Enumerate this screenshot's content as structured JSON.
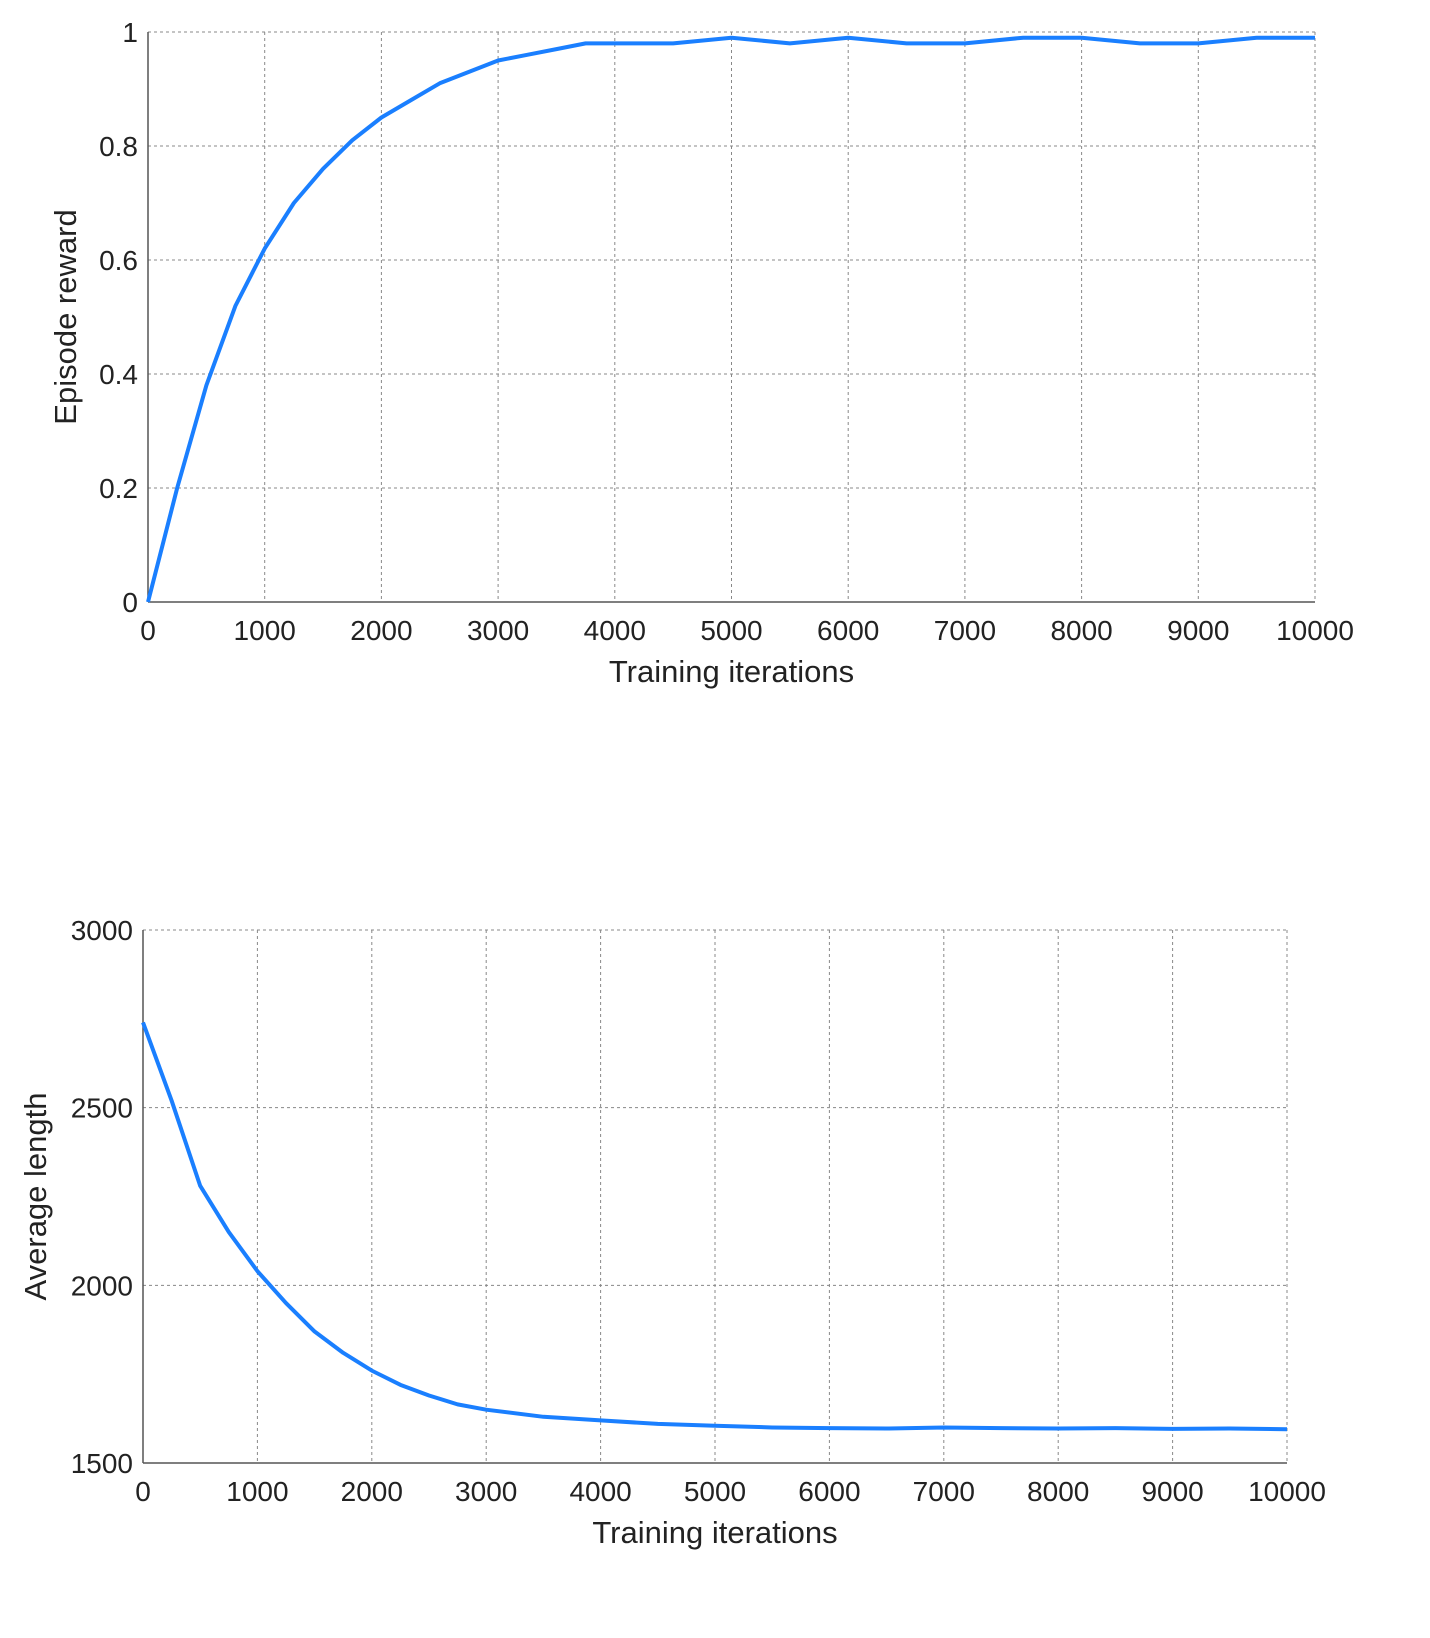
{
  "chart_data": [
    {
      "type": "line",
      "xlabel": "Training iterations",
      "ylabel": "Episode reward",
      "x": [
        0,
        250,
        500,
        750,
        1000,
        1250,
        1500,
        1750,
        2000,
        2250,
        2500,
        2750,
        3000,
        3250,
        3500,
        3750,
        4000,
        4500,
        5000,
        5500,
        6000,
        6500,
        7000,
        7500,
        8000,
        8500,
        9000,
        9500,
        10000
      ],
      "series": [
        {
          "name": "Episode reward",
          "color": "#1a7fff",
          "values": [
            0,
            0.2,
            0.38,
            0.52,
            0.62,
            0.7,
            0.76,
            0.81,
            0.85,
            0.88,
            0.91,
            0.93,
            0.95,
            0.96,
            0.97,
            0.98,
            0.98,
            0.98,
            0.99,
            0.98,
            0.99,
            0.98,
            0.98,
            0.99,
            0.99,
            0.98,
            0.98,
            0.99,
            0.99
          ]
        }
      ],
      "xlim": [
        0,
        10000
      ],
      "xticks": [
        0,
        1000,
        2000,
        3000,
        4000,
        5000,
        6000,
        7000,
        8000,
        9000,
        10000
      ],
      "ylim": [
        0,
        1
      ],
      "yticks": [
        0,
        0.2,
        0.4,
        0.6,
        0.8,
        1
      ],
      "grid": true
    },
    {
      "type": "line",
      "xlabel": "Training iterations",
      "ylabel": "Average length",
      "x": [
        0,
        250,
        500,
        750,
        1000,
        1250,
        1500,
        1750,
        2000,
        2250,
        2500,
        2750,
        3000,
        3500,
        4000,
        4500,
        5000,
        5500,
        6000,
        6500,
        7000,
        7500,
        8000,
        8500,
        9000,
        9500,
        10000
      ],
      "series": [
        {
          "name": "Average length",
          "color": "#1a7fff",
          "values": [
            2740,
            2520,
            2280,
            2150,
            2040,
            1950,
            1870,
            1810,
            1760,
            1720,
            1690,
            1665,
            1650,
            1630,
            1620,
            1610,
            1605,
            1600,
            1598,
            1597,
            1600,
            1598,
            1597,
            1598,
            1596,
            1597,
            1595
          ]
        }
      ],
      "xlim": [
        0,
        10000
      ],
      "xticks": [
        0,
        1000,
        2000,
        3000,
        4000,
        5000,
        6000,
        7000,
        8000,
        9000,
        10000
      ],
      "ylim": [
        1500,
        3000
      ],
      "yticks": [
        1500,
        2000,
        2500,
        3000
      ],
      "grid": true
    }
  ]
}
